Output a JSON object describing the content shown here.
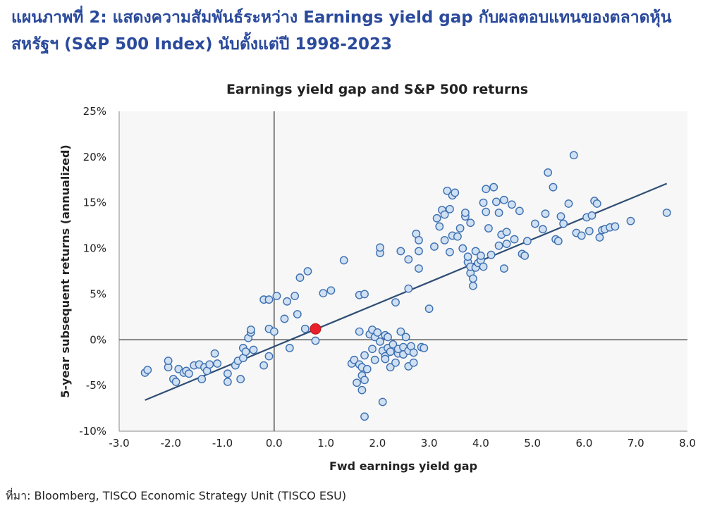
{
  "heading": {
    "line1": "แผนภาพที่ 2: แสดงความสัมพันธ์ระหว่าง Earnings yield gap กับผลตอบแทนของตลาดหุ้น",
    "line2": "สหรัฐฯ (S&P 500 Index) นับตั้งแต่ปี 1998-2023"
  },
  "source": "ที่มา: Bloomberg, TISCO Economic Strategy Unit (TISCO ESU)",
  "colors": {
    "heading": "#2b4a9c",
    "plot_background": "#f7f7f7",
    "point_fill": "#cfe0f3",
    "point_stroke": "#3d6fb0",
    "trend_line": "#2f4e75",
    "highlight_point": "#e8202a",
    "axis_lines": "#555555"
  },
  "chart_data": {
    "type": "scatter",
    "title": "Earnings yield gap and S&P 500 returns",
    "xlabel": "Fwd earnings yield gap",
    "ylabel": "5-year subsequent returns (annualized)",
    "xlim": [
      -3.0,
      8.0
    ],
    "ylim": [
      -10,
      25
    ],
    "x_ticks": [
      -3.0,
      -2.0,
      -1.0,
      0.0,
      1.0,
      2.0,
      3.0,
      4.0,
      5.0,
      6.0,
      7.0,
      8.0
    ],
    "x_tick_labels": [
      "-3.0",
      "-2.0",
      "-1.0",
      "0.0",
      "1.0",
      "2.0",
      "3.0",
      "4.0",
      "5.0",
      "6.0",
      "7.0",
      "8.0"
    ],
    "y_ticks": [
      -10,
      -5,
      0,
      5,
      10,
      15,
      20,
      25
    ],
    "y_tick_labels": [
      "-10%",
      "-5%",
      "0%",
      "5%",
      "10%",
      "15%",
      "20%",
      "25%"
    ],
    "grid": false,
    "legend": "none",
    "trend_line": {
      "x": [
        -2.5,
        7.6
      ],
      "y": [
        -6.6,
        17.1
      ]
    },
    "highlight": {
      "x": 0.8,
      "y": 1.2
    },
    "points": [
      {
        "x": -2.5,
        "y": -3.6
      },
      {
        "x": -2.45,
        "y": -3.3
      },
      {
        "x": -2.05,
        "y": -3.0
      },
      {
        "x": -2.05,
        "y": -2.3
      },
      {
        "x": -1.95,
        "y": -4.3
      },
      {
        "x": -1.9,
        "y": -4.6
      },
      {
        "x": -1.85,
        "y": -3.2
      },
      {
        "x": -1.75,
        "y": -3.6
      },
      {
        "x": -1.7,
        "y": -3.4
      },
      {
        "x": -1.65,
        "y": -3.7
      },
      {
        "x": -1.55,
        "y": -2.8
      },
      {
        "x": -1.45,
        "y": -2.7
      },
      {
        "x": -1.4,
        "y": -4.3
      },
      {
        "x": -1.35,
        "y": -3.0
      },
      {
        "x": -1.3,
        "y": -3.4
      },
      {
        "x": -1.25,
        "y": -2.7
      },
      {
        "x": -1.15,
        "y": -1.5
      },
      {
        "x": -1.1,
        "y": -2.6
      },
      {
        "x": -0.9,
        "y": -4.6
      },
      {
        "x": -0.9,
        "y": -3.7
      },
      {
        "x": -0.75,
        "y": -2.8
      },
      {
        "x": -0.7,
        "y": -2.3
      },
      {
        "x": -0.65,
        "y": -4.3
      },
      {
        "x": -0.6,
        "y": -2.0
      },
      {
        "x": -0.6,
        "y": -0.9
      },
      {
        "x": -0.55,
        "y": -1.3
      },
      {
        "x": -0.5,
        "y": 0.2
      },
      {
        "x": -0.45,
        "y": 0.8
      },
      {
        "x": -0.45,
        "y": 1.1
      },
      {
        "x": -0.4,
        "y": -1.1
      },
      {
        "x": -0.2,
        "y": 4.4
      },
      {
        "x": -0.2,
        "y": -2.8
      },
      {
        "x": -0.1,
        "y": -1.8
      },
      {
        "x": -0.1,
        "y": 4.4
      },
      {
        "x": -0.1,
        "y": 1.2
      },
      {
        "x": 0.0,
        "y": 0.9
      },
      {
        "x": 0.05,
        "y": 4.8
      },
      {
        "x": 0.2,
        "y": 2.3
      },
      {
        "x": 0.25,
        "y": 4.2
      },
      {
        "x": 0.3,
        "y": -0.9
      },
      {
        "x": 0.4,
        "y": 4.8
      },
      {
        "x": 0.45,
        "y": 2.8
      },
      {
        "x": 0.5,
        "y": 6.8
      },
      {
        "x": 0.6,
        "y": 1.2
      },
      {
        "x": 0.65,
        "y": 7.5
      },
      {
        "x": 0.8,
        "y": -0.1
      },
      {
        "x": 0.95,
        "y": 5.1
      },
      {
        "x": 1.1,
        "y": 5.4
      },
      {
        "x": 1.35,
        "y": 8.7
      },
      {
        "x": 1.5,
        "y": -2.6
      },
      {
        "x": 1.55,
        "y": -2.2
      },
      {
        "x": 1.6,
        "y": -4.7
      },
      {
        "x": 1.65,
        "y": 4.9
      },
      {
        "x": 1.65,
        "y": 0.9
      },
      {
        "x": 1.65,
        "y": -2.7
      },
      {
        "x": 1.7,
        "y": -3.0
      },
      {
        "x": 1.7,
        "y": -3.9
      },
      {
        "x": 1.7,
        "y": -5.5
      },
      {
        "x": 1.75,
        "y": -8.4
      },
      {
        "x": 1.75,
        "y": -4.4
      },
      {
        "x": 1.75,
        "y": -1.7
      },
      {
        "x": 1.75,
        "y": 5.0
      },
      {
        "x": 1.8,
        "y": -3.2
      },
      {
        "x": 1.85,
        "y": 0.6
      },
      {
        "x": 1.9,
        "y": 1.1
      },
      {
        "x": 1.9,
        "y": -1.0
      },
      {
        "x": 1.95,
        "y": 0.3
      },
      {
        "x": 1.95,
        "y": -2.2
      },
      {
        "x": 2.0,
        "y": 0.8
      },
      {
        "x": 2.05,
        "y": 9.5
      },
      {
        "x": 2.05,
        "y": 10.1
      },
      {
        "x": 2.05,
        "y": -0.2
      },
      {
        "x": 2.1,
        "y": -1.2
      },
      {
        "x": 2.1,
        "y": -6.8
      },
      {
        "x": 2.15,
        "y": 0.5
      },
      {
        "x": 2.15,
        "y": -1.8
      },
      {
        "x": 2.15,
        "y": -2.1
      },
      {
        "x": 2.2,
        "y": 0.3
      },
      {
        "x": 2.2,
        "y": -0.9
      },
      {
        "x": 2.25,
        "y": -1.3
      },
      {
        "x": 2.25,
        "y": -3.0
      },
      {
        "x": 2.3,
        "y": -0.5
      },
      {
        "x": 2.35,
        "y": 4.1
      },
      {
        "x": 2.35,
        "y": -2.5
      },
      {
        "x": 2.4,
        "y": -1.5
      },
      {
        "x": 2.4,
        "y": -1.0
      },
      {
        "x": 2.45,
        "y": 0.9
      },
      {
        "x": 2.45,
        "y": 9.7
      },
      {
        "x": 2.5,
        "y": -1.6
      },
      {
        "x": 2.5,
        "y": -0.8
      },
      {
        "x": 2.55,
        "y": 0.3
      },
      {
        "x": 2.6,
        "y": 5.6
      },
      {
        "x": 2.6,
        "y": -1.2
      },
      {
        "x": 2.6,
        "y": -2.9
      },
      {
        "x": 2.6,
        "y": 8.8
      },
      {
        "x": 2.65,
        "y": -0.7
      },
      {
        "x": 2.7,
        "y": -2.5
      },
      {
        "x": 2.7,
        "y": -1.4
      },
      {
        "x": 2.75,
        "y": 11.6
      },
      {
        "x": 2.8,
        "y": 7.8
      },
      {
        "x": 2.8,
        "y": 9.7
      },
      {
        "x": 2.8,
        "y": 10.9
      },
      {
        "x": 2.85,
        "y": -0.8
      },
      {
        "x": 2.9,
        "y": -0.9
      },
      {
        "x": 3.0,
        "y": 3.4
      },
      {
        "x": 3.1,
        "y": 10.2
      },
      {
        "x": 3.15,
        "y": 13.3
      },
      {
        "x": 3.2,
        "y": 12.4
      },
      {
        "x": 3.25,
        "y": 14.2
      },
      {
        "x": 3.3,
        "y": 10.9
      },
      {
        "x": 3.3,
        "y": 13.7
      },
      {
        "x": 3.35,
        "y": 16.3
      },
      {
        "x": 3.4,
        "y": 14.3
      },
      {
        "x": 3.4,
        "y": 9.6
      },
      {
        "x": 3.45,
        "y": 11.4
      },
      {
        "x": 3.45,
        "y": 15.8
      },
      {
        "x": 3.5,
        "y": 16.1
      },
      {
        "x": 3.55,
        "y": 11.3
      },
      {
        "x": 3.6,
        "y": 12.2
      },
      {
        "x": 3.65,
        "y": 10.0
      },
      {
        "x": 3.7,
        "y": 13.5
      },
      {
        "x": 3.7,
        "y": 13.9
      },
      {
        "x": 3.75,
        "y": 8.5
      },
      {
        "x": 3.75,
        "y": 9.1
      },
      {
        "x": 3.8,
        "y": 7.3
      },
      {
        "x": 3.8,
        "y": 8.0
      },
      {
        "x": 3.8,
        "y": 12.8
      },
      {
        "x": 3.85,
        "y": 5.9
      },
      {
        "x": 3.85,
        "y": 6.7
      },
      {
        "x": 3.9,
        "y": 9.7
      },
      {
        "x": 3.9,
        "y": 7.9
      },
      {
        "x": 3.95,
        "y": 8.4
      },
      {
        "x": 4.0,
        "y": 8.7
      },
      {
        "x": 4.0,
        "y": 9.2
      },
      {
        "x": 4.05,
        "y": 8.0
      },
      {
        "x": 4.05,
        "y": 15.0
      },
      {
        "x": 4.1,
        "y": 16.5
      },
      {
        "x": 4.1,
        "y": 14.0
      },
      {
        "x": 4.15,
        "y": 12.2
      },
      {
        "x": 4.2,
        "y": 9.3
      },
      {
        "x": 4.25,
        "y": 16.7
      },
      {
        "x": 4.3,
        "y": 15.1
      },
      {
        "x": 4.35,
        "y": 13.9
      },
      {
        "x": 4.35,
        "y": 10.3
      },
      {
        "x": 4.4,
        "y": 11.5
      },
      {
        "x": 4.45,
        "y": 15.3
      },
      {
        "x": 4.45,
        "y": 7.8
      },
      {
        "x": 4.5,
        "y": 11.8
      },
      {
        "x": 4.5,
        "y": 10.5
      },
      {
        "x": 4.6,
        "y": 14.8
      },
      {
        "x": 4.65,
        "y": 11.0
      },
      {
        "x": 4.75,
        "y": 14.1
      },
      {
        "x": 4.8,
        "y": 9.4
      },
      {
        "x": 4.85,
        "y": 9.2
      },
      {
        "x": 4.9,
        "y": 10.8
      },
      {
        "x": 5.05,
        "y": 12.7
      },
      {
        "x": 5.2,
        "y": 12.1
      },
      {
        "x": 5.25,
        "y": 13.8
      },
      {
        "x": 5.3,
        "y": 18.3
      },
      {
        "x": 5.4,
        "y": 16.7
      },
      {
        "x": 5.45,
        "y": 11.0
      },
      {
        "x": 5.5,
        "y": 10.8
      },
      {
        "x": 5.55,
        "y": 13.5
      },
      {
        "x": 5.6,
        "y": 12.7
      },
      {
        "x": 5.7,
        "y": 14.9
      },
      {
        "x": 5.8,
        "y": 20.2
      },
      {
        "x": 5.85,
        "y": 11.7
      },
      {
        "x": 5.95,
        "y": 11.4
      },
      {
        "x": 6.05,
        "y": 13.4
      },
      {
        "x": 6.1,
        "y": 11.9
      },
      {
        "x": 6.15,
        "y": 13.6
      },
      {
        "x": 6.2,
        "y": 15.2
      },
      {
        "x": 6.25,
        "y": 14.9
      },
      {
        "x": 6.3,
        "y": 11.2
      },
      {
        "x": 6.35,
        "y": 12.0
      },
      {
        "x": 6.4,
        "y": 12.1
      },
      {
        "x": 6.5,
        "y": 12.3
      },
      {
        "x": 6.6,
        "y": 12.4
      },
      {
        "x": 6.9,
        "y": 13.0
      },
      {
        "x": 7.6,
        "y": 13.9
      }
    ]
  }
}
